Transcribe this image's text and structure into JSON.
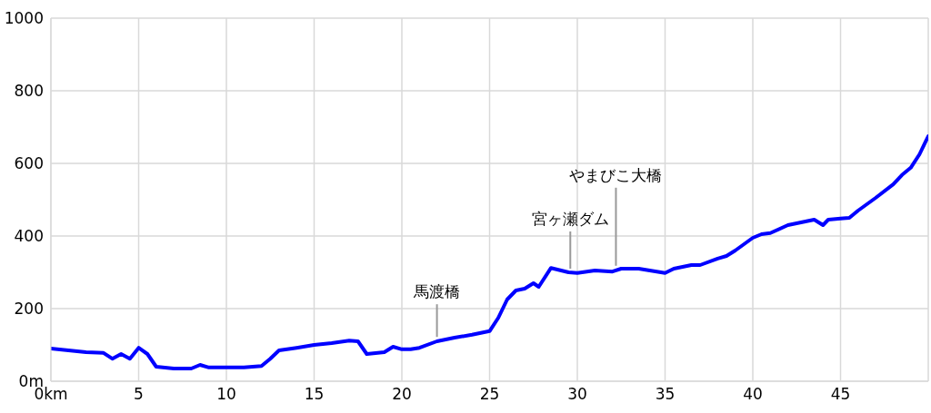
{
  "chart_data": {
    "type": "line",
    "x": [
      0,
      1,
      2,
      3,
      3.5,
      4,
      4.5,
      5,
      5.5,
      6,
      7,
      8,
      8.5,
      9,
      10,
      11,
      12,
      12.5,
      13,
      14,
      15,
      16,
      17,
      17.5,
      18,
      19,
      19.5,
      20,
      20.5,
      21,
      22,
      23,
      24,
      25,
      25.5,
      26,
      26.5,
      27,
      27.5,
      27.8,
      28.5,
      29.5,
      30,
      31,
      32,
      32.5,
      33.5,
      35,
      35.5,
      36.5,
      37,
      38,
      38.5,
      39,
      40,
      40.5,
      41,
      42,
      42.5,
      43,
      43.5,
      44,
      44.3,
      45,
      45.5,
      46,
      47,
      48,
      48.5,
      49,
      49.5,
      50
    ],
    "series": [
      {
        "color": "#0000ff",
        "values": [
          90,
          85,
          80,
          78,
          62,
          75,
          62,
          92,
          75,
          40,
          35,
          35,
          45,
          38,
          38,
          38,
          42,
          62,
          85,
          92,
          100,
          105,
          112,
          110,
          75,
          80,
          95,
          88,
          88,
          92,
          110,
          120,
          128,
          138,
          175,
          225,
          250,
          255,
          270,
          260,
          312,
          300,
          298,
          305,
          302,
          310,
          310,
          298,
          310,
          320,
          320,
          338,
          345,
          360,
          395,
          405,
          408,
          430,
          435,
          440,
          445,
          430,
          445,
          448,
          450,
          470,
          505,
          542,
          568,
          588,
          625,
          675
        ]
      }
    ],
    "xlim": [
      0,
      50
    ],
    "xticks": [
      {
        "value": 0,
        "label": "0km"
      },
      5,
      10,
      15,
      20,
      25,
      30,
      35,
      40,
      45
    ],
    "ylim": [
      0,
      1000
    ],
    "yticks": [
      {
        "value": 0,
        "label": "0m"
      },
      200,
      400,
      600,
      800,
      1000
    ],
    "grid": true,
    "marker": "none",
    "line_style": "solid",
    "annotations": [
      {
        "text": "馬渡橋",
        "x": 22,
        "y": 112
      },
      {
        "text": "宮ヶ瀬ダム",
        "x": 29.6,
        "y": 300
      },
      {
        "text": "やまびこ大橋",
        "x": 32.2,
        "y": 308
      }
    ]
  }
}
